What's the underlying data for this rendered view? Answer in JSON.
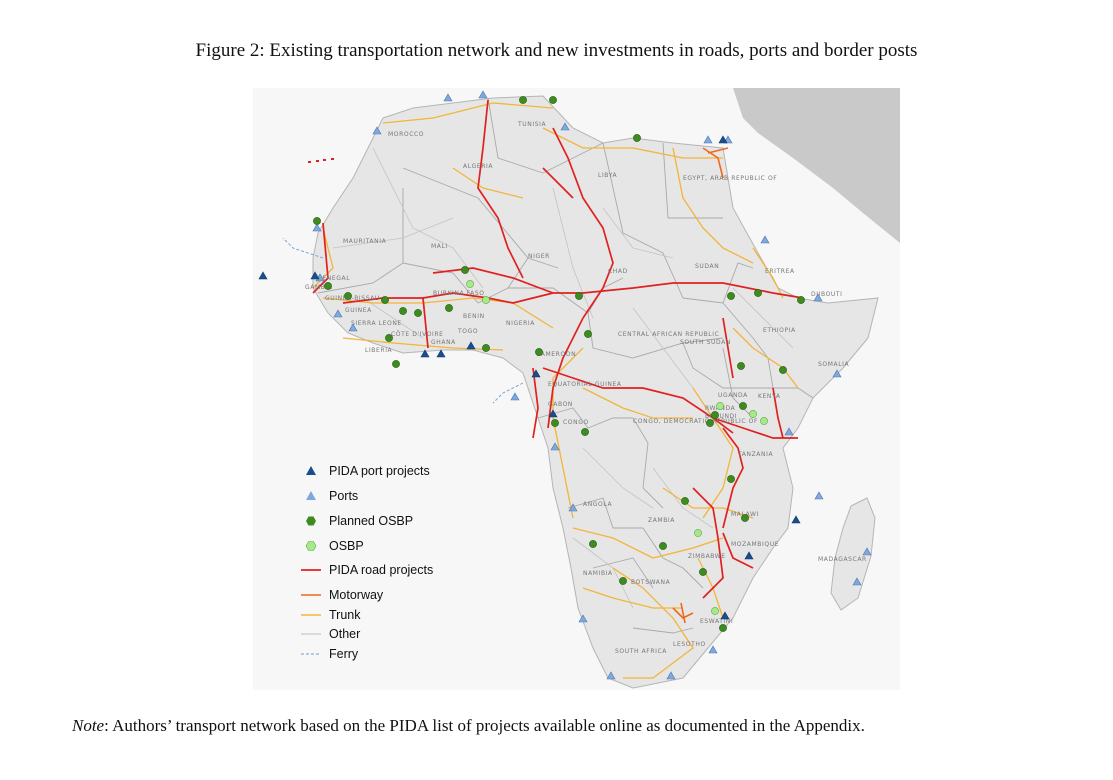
{
  "figure": {
    "caption": "Figure 2: Existing transportation network and new investments in roads, ports and border posts",
    "note_prefix": "Note",
    "note_text": ": Authors’ transport network based on the PIDA list of projects available online as documented in the Appendix."
  },
  "map": {
    "countries": [
      "MOROCCO",
      "ALGERIA",
      "TUNISIA",
      "LIBYA",
      "EGYPT, ARAB REPUBLIC OF",
      "MAURITANIA",
      "MALI",
      "NIGER",
      "CHAD",
      "SUDAN",
      "ERITREA",
      "DJIBOUTI",
      "SENEGAL",
      "GAMBIA",
      "GUINEA-BISSAU",
      "GUINEA",
      "SIERRA LEONE",
      "LIBERIA",
      "CÔTE D'IVOIRE",
      "BURKINA FASO",
      "GHANA",
      "TOGO",
      "BENIN",
      "NIGERIA",
      "CAMEROON",
      "CENTRAL AFRICAN REPUBLIC",
      "SOUTH SUDAN",
      "ETHIOPIA",
      "SOMALIA",
      "EQUATORIAL GUINEA",
      "GABON",
      "CONGO",
      "CONGO, DEMOCRATIC REPUBLIC OF",
      "UGANDA",
      "KENYA",
      "RWANDA",
      "BURUNDI",
      "TANZANIA",
      "ANGOLA",
      "ZAMBIA",
      "MALAWI",
      "MOZAMBIQUE",
      "ZIMBABWE",
      "NAMIBIA",
      "BOTSWANA",
      "SOUTH AFRICA",
      "ESWATINI",
      "LESOTHO",
      "MADAGASCAR"
    ],
    "legend": [
      {
        "label": "PIDA port projects",
        "symbol": "triangle",
        "color": "#1a4f8f"
      },
      {
        "label": "Ports",
        "symbol": "triangle",
        "color": "#7fa9dd"
      },
      {
        "label": "Planned OSBP",
        "symbol": "hexagon",
        "color": "#3d8c1e"
      },
      {
        "label": "OSBP",
        "symbol": "hexagon",
        "color": "#a6e98a"
      },
      {
        "label": "PIDA road projects",
        "symbol": "line",
        "color": "#e0211f"
      },
      {
        "label": "Motorway",
        "symbol": "line",
        "color": "#f06a1a"
      },
      {
        "label": "Trunk",
        "symbol": "line",
        "color": "#f2b53a"
      },
      {
        "label": "Other",
        "symbol": "line",
        "color": "#bdbdbd"
      },
      {
        "label": "Ferry",
        "symbol": "dashed",
        "color": "#6a9ed6"
      }
    ]
  }
}
